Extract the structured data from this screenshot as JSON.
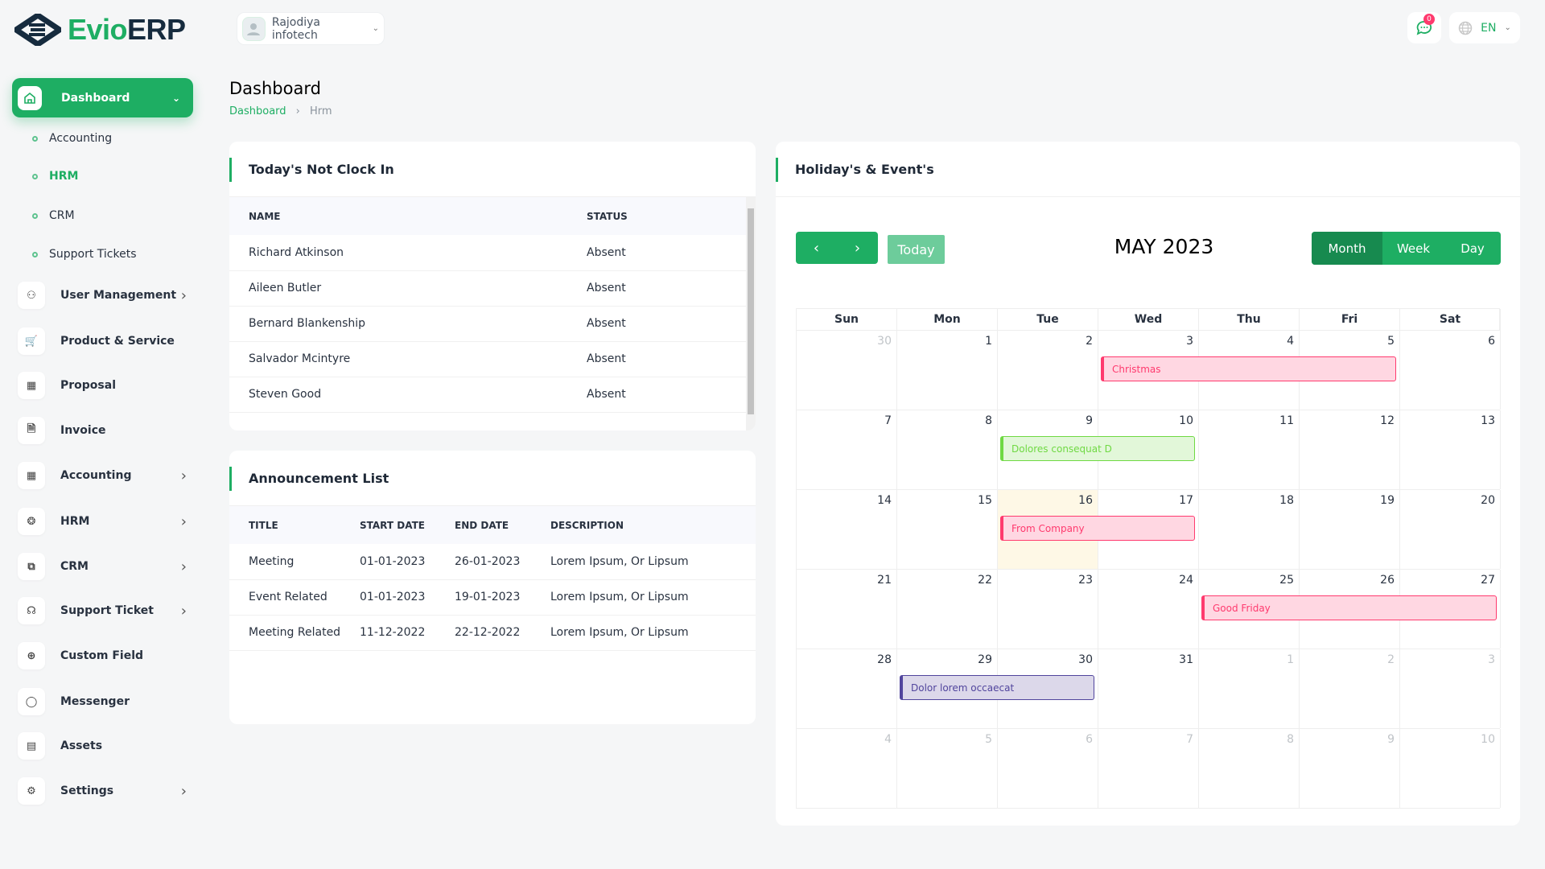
{
  "brand": {
    "logo_a": "Evio",
    "logo_b": "ERP"
  },
  "header": {
    "company": "Rajodiya infotech",
    "notification_count": "0",
    "language": "EN"
  },
  "sidebar": {
    "active": {
      "label": "Dashboard"
    },
    "sub": [
      {
        "label": "Accounting"
      },
      {
        "label": "HRM"
      },
      {
        "label": "CRM"
      },
      {
        "label": "Support Tickets"
      }
    ],
    "items": [
      {
        "label": "User Management",
        "icon": "users-icon",
        "chev": true
      },
      {
        "label": "Product & Service",
        "icon": "cart-icon",
        "chev": false
      },
      {
        "label": "Proposal",
        "icon": "proposal-icon",
        "chev": false
      },
      {
        "label": "Invoice",
        "icon": "invoice-icon",
        "chev": false
      },
      {
        "label": "Accounting",
        "icon": "grid-icon",
        "chev": true
      },
      {
        "label": "HRM",
        "icon": "hrm-icon",
        "chev": true
      },
      {
        "label": "CRM",
        "icon": "crm-icon",
        "chev": true
      },
      {
        "label": "Support Ticket",
        "icon": "headset-icon",
        "chev": true
      },
      {
        "label": "Custom Field",
        "icon": "plus-circle-icon",
        "chev": false
      },
      {
        "label": "Messenger",
        "icon": "chat-icon",
        "chev": false
      },
      {
        "label": "Assets",
        "icon": "calculator-icon",
        "chev": false
      },
      {
        "label": "Settings",
        "icon": "gear-icon",
        "chev": true
      }
    ]
  },
  "page": {
    "title": "Dashboard",
    "breadcrumb": [
      "Dashboard",
      "Hrm"
    ]
  },
  "clock": {
    "title": "Today's Not Clock In",
    "columns": [
      "NAME",
      "STATUS"
    ],
    "rows": [
      [
        "Richard Atkinson",
        "Absent"
      ],
      [
        "Aileen Butler",
        "Absent"
      ],
      [
        "Bernard Blankenship",
        "Absent"
      ],
      [
        "Salvador Mcintyre",
        "Absent"
      ],
      [
        "Steven Good",
        "Absent"
      ]
    ]
  },
  "announcements": {
    "title": "Announcement List",
    "columns": [
      "TITLE",
      "START DATE",
      "END DATE",
      "DESCRIPTION"
    ],
    "rows": [
      [
        "Meeting",
        "01-01-2023",
        "26-01-2023",
        "Lorem Ipsum, Or Lipsum"
      ],
      [
        "Event Related",
        "01-01-2023",
        "19-01-2023",
        "Lorem Ipsum, Or Lipsum"
      ],
      [
        "Meeting Related",
        "11-12-2022",
        "22-12-2022",
        "Lorem Ipsum, Or Lipsum"
      ]
    ]
  },
  "calendar": {
    "title": "Holiday's & Event's",
    "today_label": "Today",
    "month_title": "MAY 2023",
    "views": [
      "Month",
      "Week",
      "Day"
    ],
    "active_view": "Month",
    "dow": [
      "Sun",
      "Mon",
      "Tue",
      "Wed",
      "Thu",
      "Fri",
      "Sat"
    ],
    "weeks": [
      [
        "30",
        "1",
        "2",
        "3",
        "4",
        "5",
        "6"
      ],
      [
        "7",
        "8",
        "9",
        "10",
        "11",
        "12",
        "13"
      ],
      [
        "14",
        "15",
        "16",
        "17",
        "18",
        "19",
        "20"
      ],
      [
        "21",
        "22",
        "23",
        "24",
        "25",
        "26",
        "27"
      ],
      [
        "28",
        "29",
        "30",
        "31",
        "1",
        "2",
        "3"
      ],
      [
        "4",
        "5",
        "6",
        "7",
        "8",
        "9",
        "10"
      ]
    ],
    "today": "16",
    "events": [
      {
        "title": "Christmas",
        "start": "2023-05-03",
        "end": "2023-05-05",
        "color": "#ff3a6e",
        "bg": "#ffd7e2"
      },
      {
        "title": "Dolores consequat D",
        "start": "2023-05-09",
        "end": "2023-05-10",
        "color": "#6fd943",
        "bg": "#e2f7d9"
      },
      {
        "title": "From Company",
        "start": "2023-05-16",
        "end": "2023-05-17",
        "color": "#ff3a6e",
        "bg": "#ffd7e2"
      },
      {
        "title": "Good Friday",
        "start": "2023-05-25",
        "end": "2023-05-27",
        "color": "#ff3a6e",
        "bg": "#ffd7e2"
      },
      {
        "title": "Dolor lorem occaecat",
        "start": "2023-05-29",
        "end": "2023-05-30",
        "color": "#51459d",
        "bg": "#dcd8ea"
      }
    ]
  }
}
